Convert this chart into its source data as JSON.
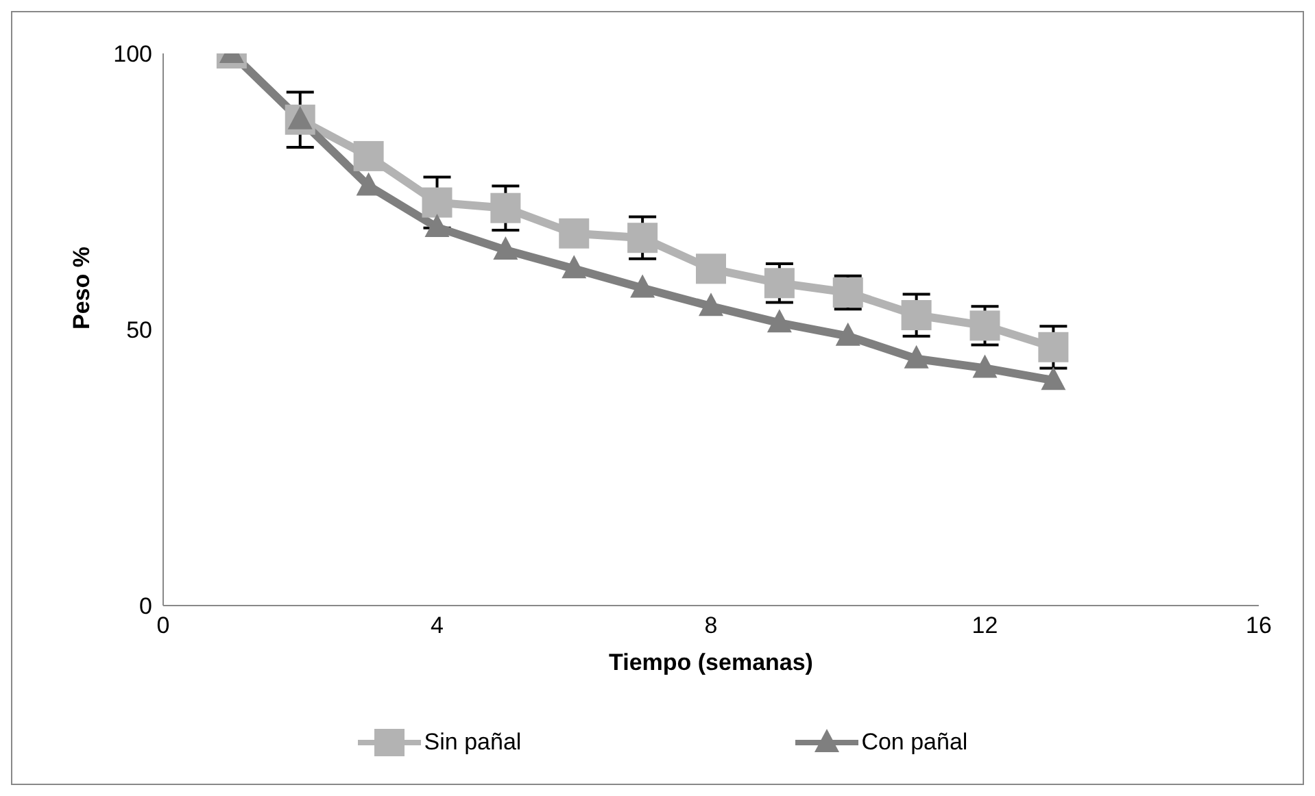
{
  "chart_data": {
    "type": "line",
    "xlabel": "Tiempo (semanas)",
    "ylabel": "Peso %",
    "x": [
      1,
      2,
      3,
      4,
      5,
      6,
      7,
      8,
      9,
      10,
      11,
      12,
      13
    ],
    "series": [
      {
        "name": "Sin pañal",
        "color": "#b3b3b3",
        "marker": "square",
        "values": [
          100,
          88,
          81.4,
          73,
          72,
          67.4,
          66.6,
          61,
          58.4,
          56.7,
          52.6,
          50.7,
          46.8
        ],
        "errors": [
          null,
          5,
          null,
          4.6,
          4,
          null,
          3.8,
          null,
          3.5,
          3,
          3.8,
          3.5,
          3.8
        ]
      },
      {
        "name": "Con pañal",
        "color": "#7f7f7f",
        "marker": "triangle",
        "values": [
          100,
          88,
          76,
          68.5,
          64.4,
          61,
          57.5,
          54.2,
          51.2,
          48.8,
          44.7,
          43,
          40.8
        ]
      }
    ],
    "xlim": [
      0,
      16
    ],
    "xticks": [
      0,
      4,
      8,
      12,
      16
    ],
    "ylim": [
      0,
      100
    ],
    "yticks": [
      0,
      50,
      100
    ],
    "grid": false,
    "legend": "bottom"
  }
}
